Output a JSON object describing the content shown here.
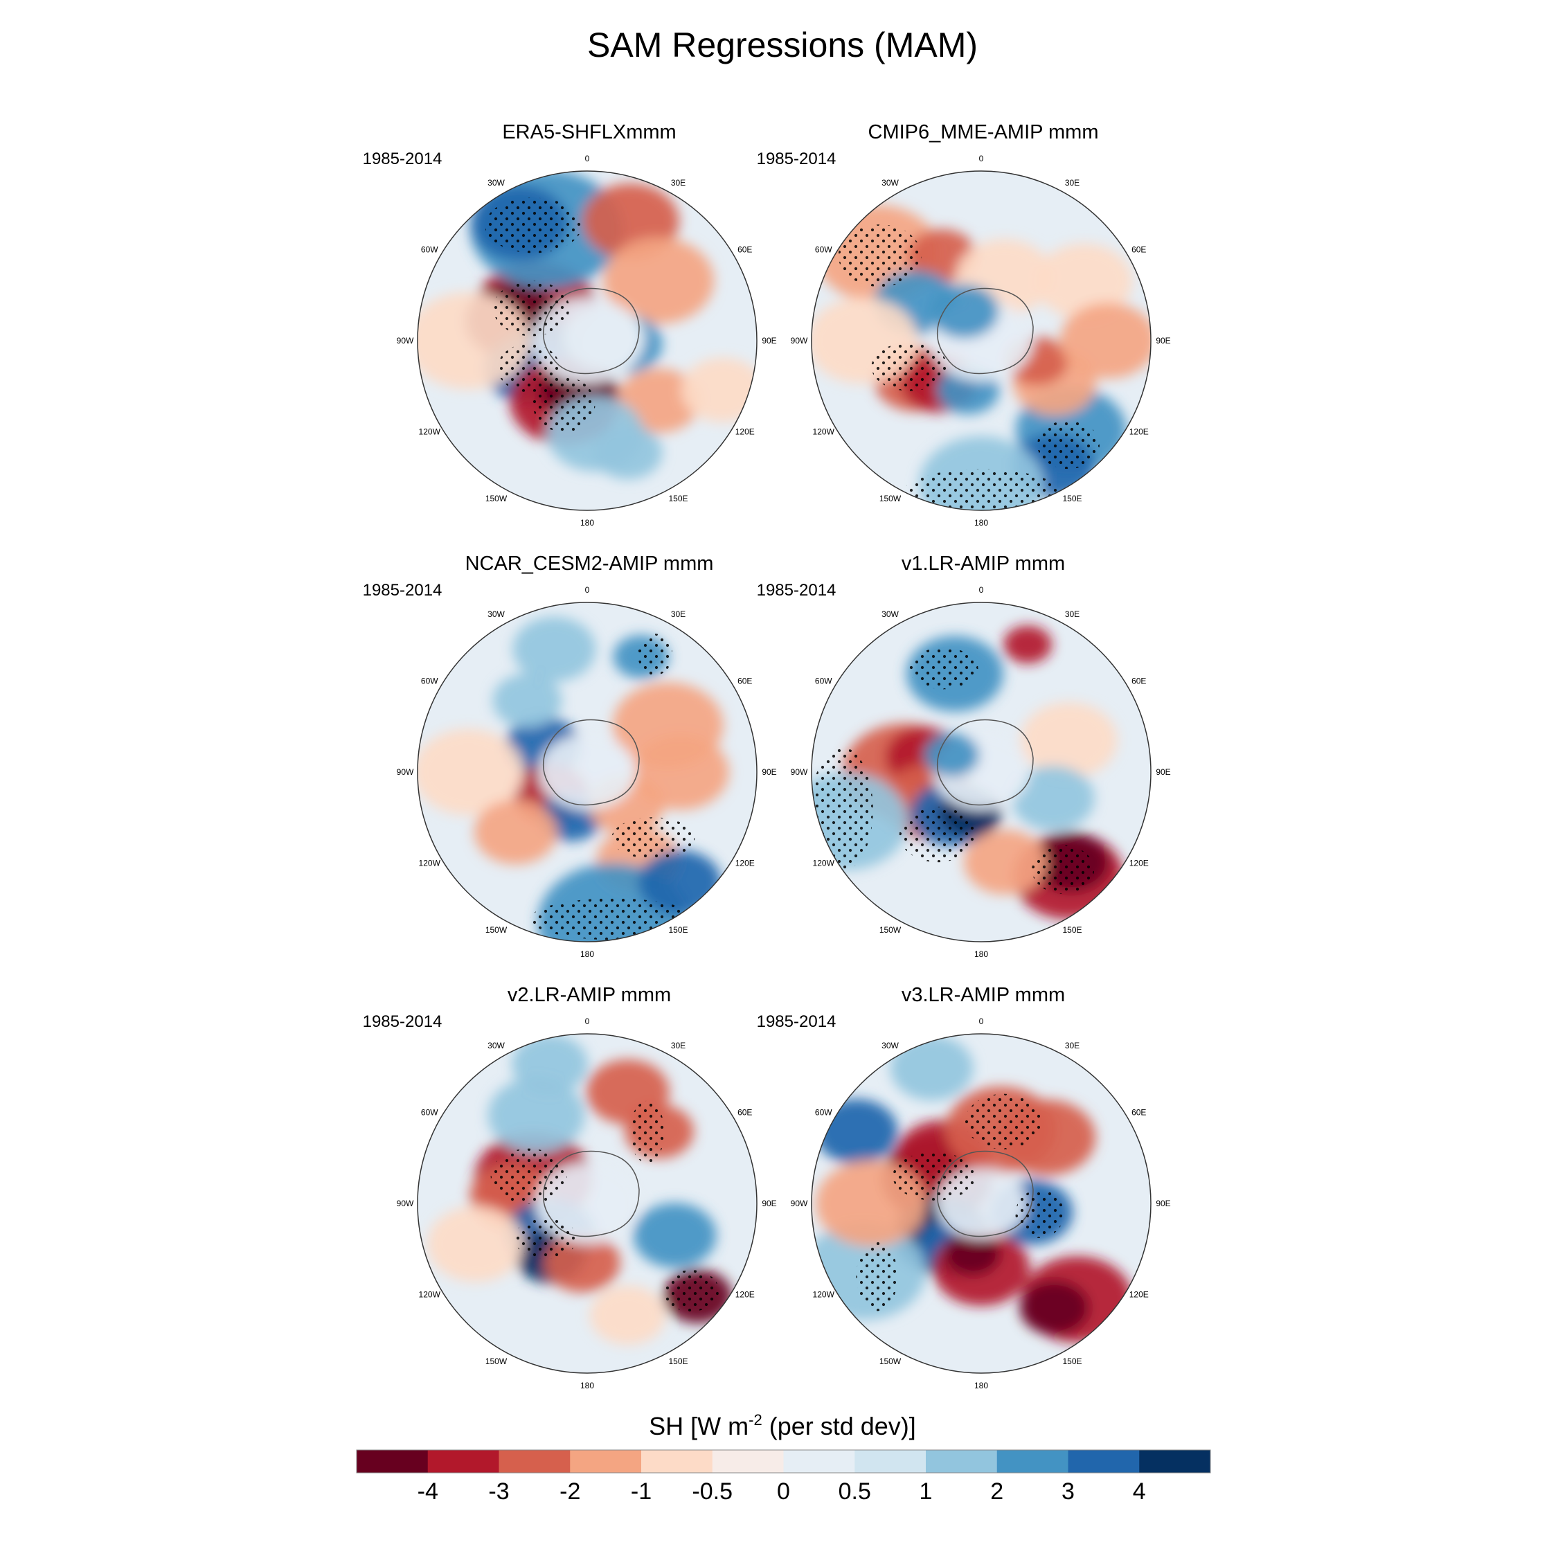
{
  "figure": {
    "title": "SAM Regressions (MAM)",
    "period_label": "1985-2014"
  },
  "lon_labels": [
    "0",
    "30E",
    "60E",
    "90E",
    "120E",
    "150E",
    "180",
    "150W",
    "120W",
    "90W",
    "60W",
    "30W"
  ],
  "panels": [
    {
      "title": "ERA5-SHFLXmmm",
      "period": "1985-2014",
      "style": "strong"
    },
    {
      "title": "CMIP6_MME-AMIP  mmm",
      "period": "1985-2014",
      "style": "mme"
    },
    {
      "title": "NCAR_CESM2-AMIP  mmm",
      "period": "1985-2014",
      "style": "cesm"
    },
    {
      "title": "v1.LR-AMIP  mmm",
      "period": "1985-2014",
      "style": "v1"
    },
    {
      "title": "v2.LR-AMIP  mmm",
      "period": "1985-2014",
      "style": "v2"
    },
    {
      "title": "v3.LR-AMIP  mmm",
      "period": "1985-2014",
      "style": "v3"
    }
  ],
  "colorbar": {
    "title": "SH [W m",
    "title_sup": "-2",
    "title_tail": " (per std dev)]",
    "levels": [
      "-4",
      "-3",
      "-2",
      "-1",
      "-0.5",
      "0",
      "0.5",
      "1",
      "2",
      "3",
      "4"
    ],
    "colors": [
      "#67001f",
      "#b2182b",
      "#d6604d",
      "#f4a582",
      "#fddbc7",
      "#f7ece8",
      "#e6eef5",
      "#d1e5f0",
      "#92c5de",
      "#4393c3",
      "#2166ac",
      "#053061"
    ]
  }
}
